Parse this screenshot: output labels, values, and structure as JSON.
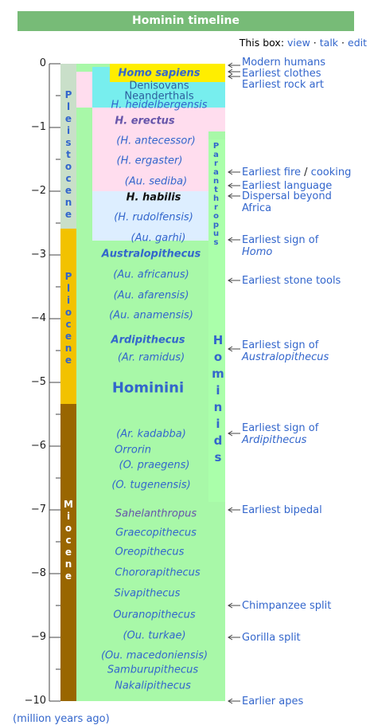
{
  "title": "Hominin timeline",
  "links": {
    "prefix": "This box:",
    "view": "view",
    "sep1": "·",
    "talk": "talk",
    "sep2": "·",
    "edit": "edit"
  },
  "axis": {
    "ticks": [
      0,
      {
        "value": -1,
        "label": "−1"
      },
      {
        "value": -2,
        "label": "−2"
      },
      {
        "value": -3,
        "label": "−3"
      },
      {
        "value": -4,
        "label": "−4"
      },
      {
        "value": -5,
        "label": "−5"
      },
      {
        "value": -6,
        "label": "−6"
      },
      {
        "value": -7,
        "label": "−7"
      },
      {
        "value": -8,
        "label": "−8"
      },
      {
        "value": -9,
        "label": "−9"
      },
      {
        "value": -10,
        "label": "−10"
      }
    ],
    "unit_label": "(million years ago)"
  },
  "epochs": [
    "Pleistocene",
    "Pliocene",
    "Miocene"
  ],
  "groups": [
    "Paranthropus",
    "Hominids"
  ],
  "taxa": [
    "Homo sapiens",
    "Denisovans",
    "Neanderthals",
    "H. heidelbergensis",
    "H. erectus",
    "(H. antecessor)",
    "(H. ergaster)",
    "(Au. sediba)",
    "H. habilis",
    "(H. rudolfensis)",
    "(Au. garhi)",
    "Australopithecus",
    "(Au. africanus)",
    "(Au. afarensis)",
    "(Au. anamensis)",
    "Ardipithecus",
    "(Ar. ramidus)",
    "Hominini",
    "(Ar. kadabba)",
    "Orrorin",
    "(O. praegens)",
    "(O. tugenensis)",
    "Sahelanthropus",
    "Graecopithecus",
    "Oreopithecus",
    "Chororapithecus",
    "Sivapithecus",
    "Ouranopithecus",
    "(Ou. turkae)",
    "(Ou. macedoniensis)",
    "Samburupithecus",
    "Nakalipithecus"
  ],
  "events": [
    "Modern humans",
    "Earliest clothes",
    "Earliest rock art",
    [
      "Earliest fire",
      "/",
      "cooking"
    ],
    "Earliest language",
    [
      "Dispersal beyond",
      "Africa"
    ],
    [
      "Earliest sign of",
      "Homo"
    ],
    "Earliest stone tools",
    [
      "Earliest sign of",
      "Australopithecus"
    ],
    [
      "Earliest sign of",
      "Ardipithecus"
    ],
    "Earliest bipedal",
    "Chimpanzee split",
    "Gorilla split",
    "Earlier apes"
  ]
}
